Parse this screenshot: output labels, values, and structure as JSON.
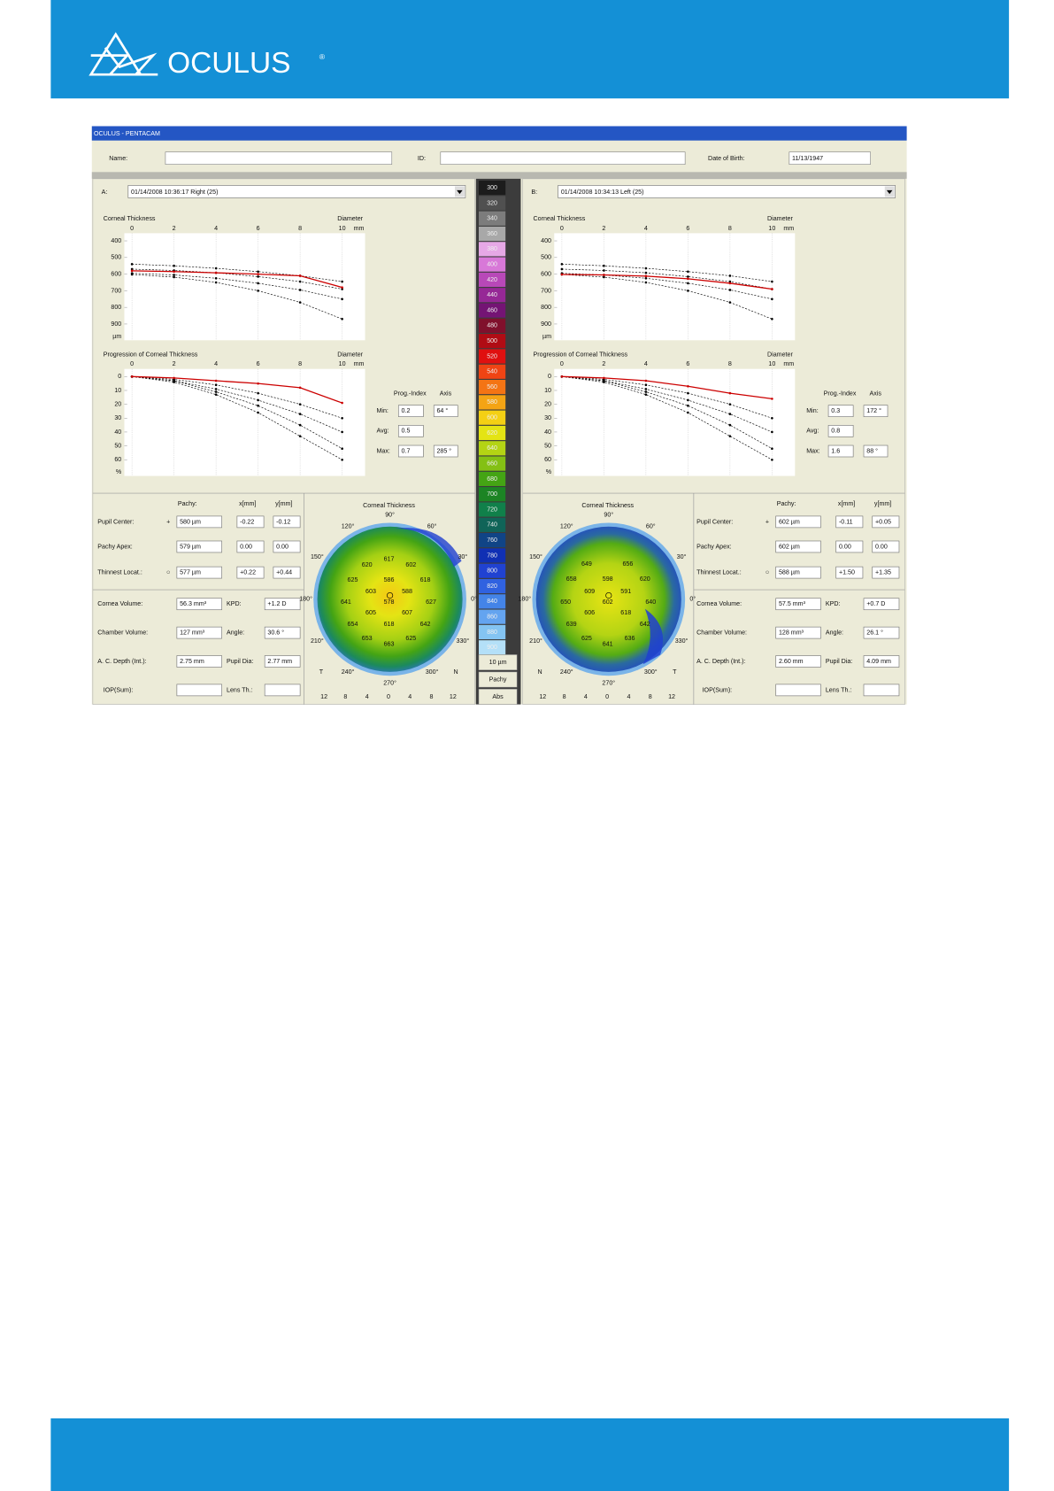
{
  "header": {
    "brand": "OCULUS",
    "reg": "®"
  },
  "window": {
    "title": "OCULUS - PENTACAM",
    "name_label": "Name:",
    "id_label": "ID:",
    "dob_label": "Date of Birth:",
    "dob": "11/13/1947"
  },
  "color_scale": {
    "values": [
      300,
      320,
      340,
      360,
      380,
      400,
      420,
      440,
      460,
      480,
      500,
      520,
      540,
      560,
      580,
      600,
      620,
      640,
      660,
      680,
      700,
      720,
      740,
      760,
      780,
      800,
      820,
      840,
      860,
      880,
      900
    ],
    "colors": [
      "#1c1c1c",
      "#505050",
      "#7c7c7c",
      "#a8a8a8",
      "#e6a8e6",
      "#d878d8",
      "#b848b8",
      "#962896",
      "#741474",
      "#80102c",
      "#b00c14",
      "#e01010",
      "#f04414",
      "#f47414",
      "#f4a414",
      "#f4d014",
      "#e4e414",
      "#b4d414",
      "#84c014",
      "#44a414",
      "#1c8424",
      "#10804a",
      "#106458",
      "#104486",
      "#1030b4",
      "#2042d2",
      "#3062e0",
      "#4484e8",
      "#64a4f0",
      "#84c4f2",
      "#b4e0f8"
    ],
    "step": "10 µm",
    "mode": "Pachy",
    "ref": "Abs"
  },
  "panels": [
    {
      "letter": "A:",
      "exam": "01/14/2008 10:36:17 Right  (25)",
      "thickness": {
        "type": "line",
        "title": "Corneal Thickness",
        "x_label": "Diameter",
        "x_unit": "mm",
        "y_unit": "µm",
        "x": [
          0,
          2,
          4,
          6,
          8,
          10
        ],
        "xlim": [
          0,
          10
        ],
        "xticks": [
          0,
          2,
          4,
          6,
          8,
          10
        ],
        "ylim": [
          400,
          900
        ],
        "yticks": [
          400,
          500,
          600,
          700,
          800,
          900
        ],
        "series": [
          {
            "color": "#000000",
            "style": "dashed",
            "values": [
              540,
              550,
              565,
              585,
              610,
              645
            ]
          },
          {
            "color": "#000000",
            "style": "dashed",
            "values": [
              570,
              578,
              592,
              615,
              645,
              690
            ]
          },
          {
            "color": "#000000",
            "style": "dashed",
            "values": [
              595,
              605,
              625,
              655,
              695,
              750
            ]
          },
          {
            "color": "#000000",
            "style": "dashed",
            "values": [
              602,
              618,
              650,
              700,
              770,
              870
            ]
          },
          {
            "color": "#cc0000",
            "style": "solid",
            "values": [
              580,
              585,
              592,
              600,
              610,
              680
            ]
          }
        ]
      },
      "progression": {
        "type": "line",
        "title": "Progression of Corneal Thickness",
        "x_label": "Diameter",
        "x_unit": "mm",
        "y_unit": "%",
        "x": [
          0,
          2,
          4,
          6,
          8,
          10
        ],
        "xlim": [
          0,
          10
        ],
        "xticks": [
          0,
          2,
          4,
          6,
          8,
          10
        ],
        "ylim": [
          0,
          60
        ],
        "yticks": [
          0,
          10,
          20,
          30,
          40,
          50,
          60
        ],
        "series": [
          {
            "color": "#000000",
            "style": "dashed",
            "values": [
              0,
              2,
              6,
              12,
              20,
              30
            ]
          },
          {
            "color": "#000000",
            "style": "dashed",
            "values": [
              0,
              3,
              9,
              17,
              27,
              40
            ]
          },
          {
            "color": "#000000",
            "style": "dashed",
            "values": [
              0,
              3,
              11,
              21,
              35,
              52
            ]
          },
          {
            "color": "#000000",
            "style": "dashed",
            "values": [
              0,
              4,
              13,
              26,
              43,
              60
            ]
          },
          {
            "color": "#cc0000",
            "style": "solid",
            "values": [
              0,
              1,
              3,
              5,
              8,
              19
            ]
          }
        ]
      },
      "prog_index": {
        "header": "Prog.-Index",
        "axis_header": "Axis",
        "rows": [
          {
            "label": "Min:",
            "value": "0.2",
            "axis": "64 °"
          },
          {
            "label": "Avg:",
            "value": "0.5"
          },
          {
            "label": "Max:",
            "value": "0.7",
            "axis": "285 °"
          }
        ]
      },
      "pachy": {
        "headers": [
          "Pachy:",
          "x[mm]",
          "y[mm]"
        ],
        "rows": [
          {
            "label": "Pupil Center:",
            "symbol": "+",
            "cells": [
              "580 µm",
              "-0.22",
              "-0.12"
            ]
          },
          {
            "label": "Pachy Apex:",
            "cells": [
              "579 µm",
              "0.00",
              "0.00"
            ]
          },
          {
            "label": "Thinnest Locat.:",
            "symbol": "○",
            "cells": [
              "577 µm",
              "+0.22",
              "+0.44"
            ]
          }
        ]
      },
      "params": [
        {
          "label": "Cornea Volume:",
          "value": "56.3 mm³",
          "label2": "KPD:",
          "value2": "+1.2 D"
        },
        {
          "label": "Chamber Volume:",
          "value": "127 mm³",
          "label2": "Angle:",
          "value2": "30.6 °"
        },
        {
          "label": "A. C. Depth (Int.):",
          "value": "2.75 mm",
          "label2": "Pupil Dia:",
          "value2": "2.77 mm"
        },
        {
          "label": "IOP(Sum):",
          "label2": "Lens Th.:"
        }
      ],
      "map": {
        "title": "Corneal Thickness",
        "angles": [
          "90°",
          "60°",
          "30°",
          "0°",
          "330°",
          "300°",
          "270°",
          "240°",
          "210°",
          "180°",
          "150°",
          "120°"
        ],
        "values": [
          "617",
          "620",
          "602",
          "625",
          "586",
          "618",
          "603",
          "588",
          "641",
          "578",
          "627",
          "605",
          "607",
          "654",
          "618",
          "642",
          "653",
          "625",
          "663"
        ],
        "scale": [
          "12",
          "8",
          "4",
          "0",
          "4",
          "8",
          "12"
        ],
        "left": "T",
        "right": "N"
      }
    },
    {
      "letter": "B:",
      "exam": "01/14/2008 10:34:13 Left   (25)",
      "thickness": {
        "type": "line",
        "title": "Corneal Thickness",
        "x_label": "Diameter",
        "x_unit": "mm",
        "y_unit": "µm",
        "x": [
          0,
          2,
          4,
          6,
          8,
          10
        ],
        "xlim": [
          0,
          10
        ],
        "xticks": [
          0,
          2,
          4,
          6,
          8,
          10
        ],
        "ylim": [
          400,
          900
        ],
        "yticks": [
          400,
          500,
          600,
          700,
          800,
          900
        ],
        "series": [
          {
            "color": "#000000",
            "style": "dashed",
            "values": [
              540,
              550,
              565,
              585,
              610,
              645
            ]
          },
          {
            "color": "#000000",
            "style": "dashed",
            "values": [
              570,
              578,
              592,
              615,
              645,
              690
            ]
          },
          {
            "color": "#000000",
            "style": "dashed",
            "values": [
              595,
              605,
              625,
              655,
              695,
              750
            ]
          },
          {
            "color": "#000000",
            "style": "dashed",
            "values": [
              602,
              618,
              650,
              700,
              770,
              870
            ]
          },
          {
            "color": "#cc0000",
            "style": "solid",
            "values": [
              602,
              605,
              612,
              628,
              655,
              690
            ]
          }
        ]
      },
      "progression": {
        "type": "line",
        "title": "Progression of Corneal Thickness",
        "x_label": "Diameter",
        "x_unit": "mm",
        "y_unit": "%",
        "x": [
          0,
          2,
          4,
          6,
          8,
          10
        ],
        "xlim": [
          0,
          10
        ],
        "xticks": [
          0,
          2,
          4,
          6,
          8,
          10
        ],
        "ylim": [
          0,
          60
        ],
        "yticks": [
          0,
          10,
          20,
          30,
          40,
          50,
          60
        ],
        "series": [
          {
            "color": "#000000",
            "style": "dashed",
            "values": [
              0,
              2,
              6,
              12,
              20,
              30
            ]
          },
          {
            "color": "#000000",
            "style": "dashed",
            "values": [
              0,
              3,
              9,
              17,
              27,
              40
            ]
          },
          {
            "color": "#000000",
            "style": "dashed",
            "values": [
              0,
              3,
              11,
              21,
              35,
              52
            ]
          },
          {
            "color": "#000000",
            "style": "dashed",
            "values": [
              0,
              4,
              13,
              26,
              43,
              60
            ]
          },
          {
            "color": "#cc0000",
            "style": "solid",
            "values": [
              0,
              1,
              3,
              7,
              12,
              16
            ]
          }
        ]
      },
      "prog_index": {
        "header": "Prog.-Index",
        "axis_header": "Axis",
        "rows": [
          {
            "label": "Min:",
            "value": "0.3",
            "axis": "172 °"
          },
          {
            "label": "Avg:",
            "value": "0.8"
          },
          {
            "label": "Max:",
            "value": "1.6",
            "axis": "88 °"
          }
        ]
      },
      "pachy": {
        "headers": [
          "Pachy:",
          "x[mm]",
          "y[mm]"
        ],
        "rows": [
          {
            "label": "Pupil Center:",
            "symbol": "+",
            "cells": [
              "602 µm",
              "-0.11",
              "+0.05"
            ]
          },
          {
            "label": "Pachy Apex:",
            "cells": [
              "602 µm",
              "0.00",
              "0.00"
            ]
          },
          {
            "label": "Thinnest Locat.:",
            "symbol": "○",
            "cells": [
              "588 µm",
              "+1.50",
              "+1.35"
            ]
          }
        ]
      },
      "params": [
        {
          "label": "Cornea Volume:",
          "value": "57.5 mm³",
          "label2": "KPD:",
          "value2": "+0.7 D"
        },
        {
          "label": "Chamber Volume:",
          "value": "128 mm³",
          "label2": "Angle:",
          "value2": "26.1 °"
        },
        {
          "label": "A. C. Depth (Int.):",
          "value": "2.60 mm",
          "label2": "Pupil Dia:",
          "value2": "4.09 mm"
        },
        {
          "label": "IOP(Sum):",
          "label2": "Lens Th.:"
        }
      ],
      "map": {
        "title": "Corneal Thickness",
        "angles": [
          "90°",
          "60°",
          "30°",
          "0°",
          "330°",
          "300°",
          "270°",
          "240°",
          "210°",
          "180°",
          "150°",
          "120°"
        ],
        "values": [
          "649",
          "656",
          "598",
          "620",
          "658",
          "609",
          "591",
          "650",
          "602",
          "640",
          "606",
          "618",
          "639",
          "642",
          "625",
          "636",
          "641"
        ],
        "scale": [
          "12",
          "8",
          "4",
          "0",
          "4",
          "8",
          "12"
        ],
        "left": "N",
        "right": "T"
      }
    }
  ]
}
